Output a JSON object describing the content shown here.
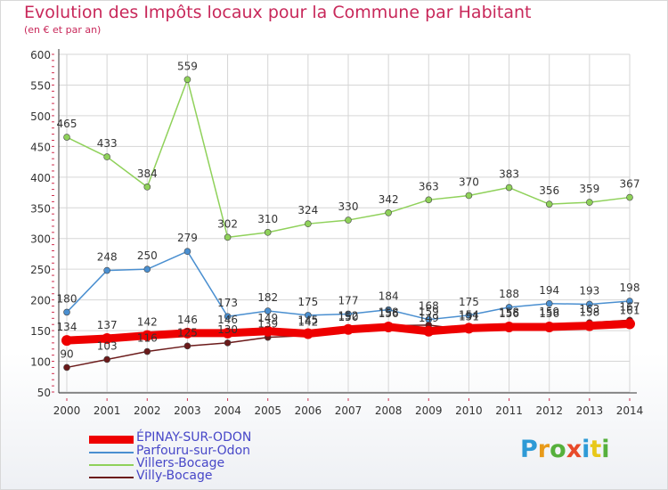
{
  "header": {
    "title": "Evolution des Impôts locaux pour la Commune par Habitant",
    "subtitle": "(en € et par an)"
  },
  "logo": {
    "text": "Proxiti",
    "colors": [
      "#2e9ad6",
      "#e89a1a",
      "#56b03c",
      "#e84a2a",
      "#2e9ad6",
      "#e8c81a",
      "#56b03c"
    ]
  },
  "chart_data": {
    "type": "line",
    "title": "Evolution des Impôts locaux pour la Commune par Habitant",
    "subtitle": "(en € et par an)",
    "x": [
      2000,
      2001,
      2002,
      2003,
      2004,
      2005,
      2006,
      2007,
      2008,
      2009,
      2010,
      2011,
      2012,
      2013,
      2014
    ],
    "ylim": [
      50,
      600
    ],
    "yticks": [
      50,
      100,
      150,
      200,
      250,
      300,
      350,
      400,
      450,
      500,
      550,
      600
    ],
    "grid": true,
    "legend_position": "bottom-left",
    "series": [
      {
        "name": "ÉPINAY-SUR-ODON",
        "color": "#ee0000",
        "values": [
          134,
          137,
          142,
          146,
          146,
          149,
          145,
          152,
          156,
          149,
          154,
          156,
          156,
          158,
          161
        ]
      },
      {
        "name": "Parfouru-sur-Odon",
        "color": "#4a8fd0",
        "values": [
          180,
          248,
          250,
          279,
          173,
          182,
          175,
          177,
          184,
          168,
          175,
          188,
          194,
          193,
          198
        ]
      },
      {
        "name": "Villers-Bocage",
        "color": "#8fd15a",
        "values": [
          465,
          433,
          384,
          559,
          302,
          310,
          324,
          330,
          342,
          363,
          370,
          383,
          356,
          359,
          367
        ]
      },
      {
        "name": "Villy-Bocage",
        "color": "#6b1a1a",
        "values": [
          90,
          103,
          116,
          125,
          130,
          139,
          142,
          150,
          158,
          159,
          151,
          158,
          159,
          163,
          167
        ]
      }
    ]
  }
}
